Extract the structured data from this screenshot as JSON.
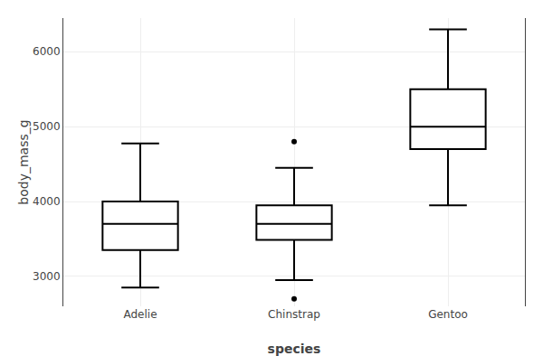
{
  "chart_data": {
    "type": "box",
    "categories": [
      "Adelie",
      "Chinstrap",
      "Gentoo"
    ],
    "q1": [
      3350,
      3488,
      4700
    ],
    "median": [
      3700,
      3700,
      5000
    ],
    "q3": [
      4000,
      3950,
      5500
    ],
    "whisker_low": [
      2850,
      2950,
      3950
    ],
    "whisker_high": [
      4775,
      4450,
      6300
    ],
    "outliers": [
      [],
      [
        4800,
        2700
      ],
      []
    ],
    "xlabel": "species",
    "ylabel": "body_mass_g",
    "ylim": [
      2600,
      6450
    ],
    "yticks": [
      3000,
      4000,
      5000,
      6000
    ],
    "grid": true,
    "color": "black"
  }
}
